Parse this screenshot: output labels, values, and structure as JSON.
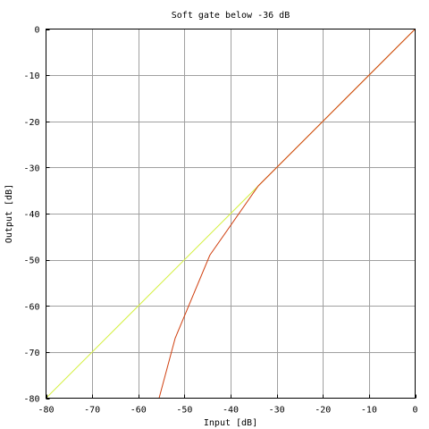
{
  "chart_data": {
    "type": "line",
    "title": "Soft gate below -36 dB",
    "xlabel": "Input [dB]",
    "ylabel": "Output [dB]",
    "xlim": [
      -80,
      0
    ],
    "ylim": [
      -80,
      0
    ],
    "grid": true,
    "x_ticks": [
      -80,
      -70,
      -60,
      -50,
      -40,
      -30,
      -20,
      -10,
      0
    ],
    "y_ticks": [
      -80,
      -70,
      -60,
      -50,
      -40,
      -30,
      -20,
      -10,
      0
    ],
    "x_tick_labels": [
      "-80",
      "-70",
      "-60",
      "-50",
      "-40",
      "-30",
      "-20",
      "-10",
      "0"
    ],
    "y_tick_labels": [
      "-80",
      "-70",
      "-60",
      "-50",
      "-40",
      "-30",
      "-20",
      "-10",
      "0"
    ],
    "series": [
      {
        "color": "#d4f040",
        "x": [
          -80,
          0
        ],
        "y": [
          -80,
          0
        ]
      },
      {
        "color": "#d04010",
        "x": [
          -80,
          -55.5,
          -52,
          -44.5,
          -34,
          0
        ],
        "y": [
          -80,
          -80,
          -67,
          -49,
          -34,
          0
        ]
      }
    ]
  }
}
